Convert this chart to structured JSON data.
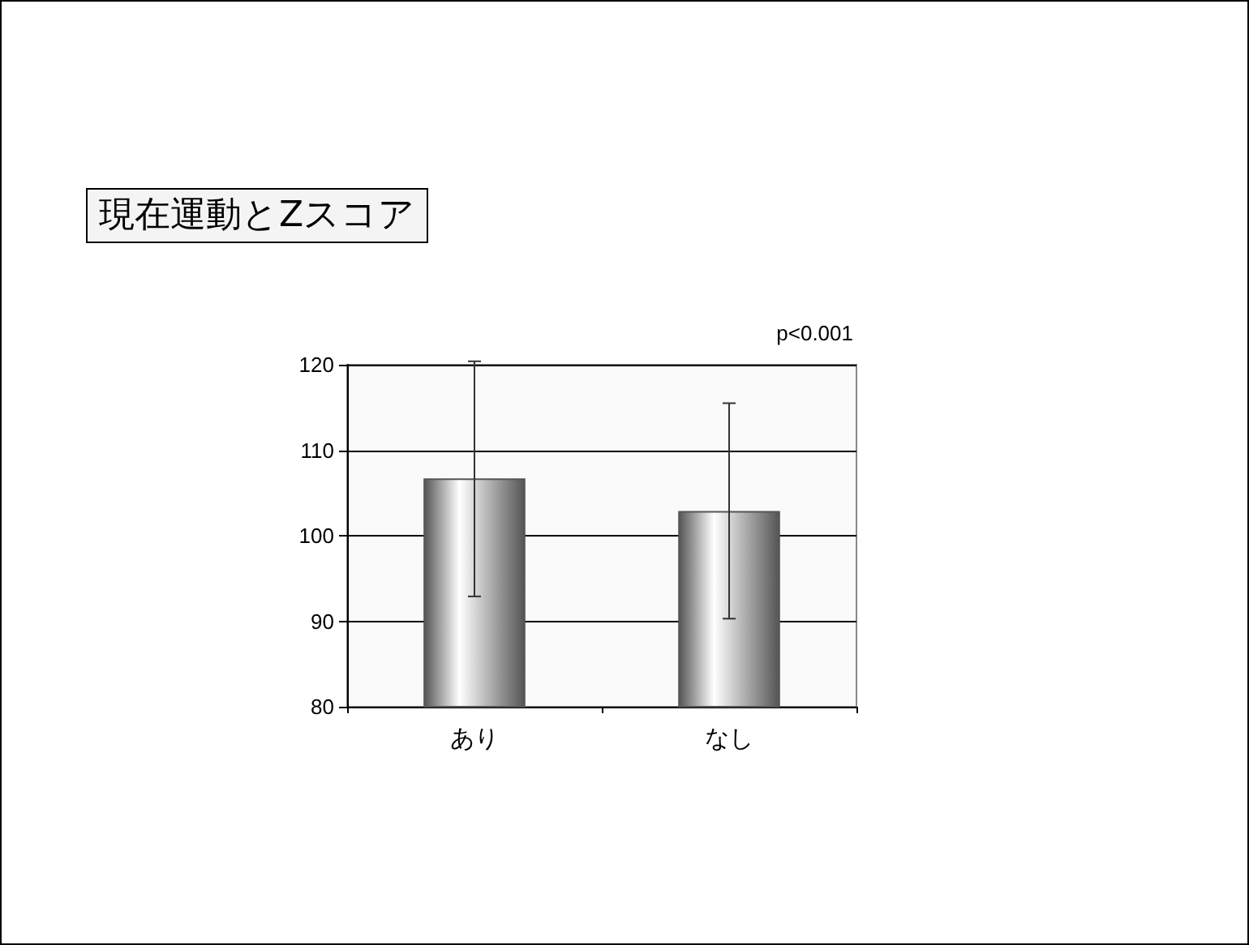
{
  "chart_data": {
    "type": "bar",
    "title": "現在運動とZスコア",
    "categories": [
      "あり",
      "なし"
    ],
    "values": [
      106.7,
      102.9
    ],
    "errors": [
      [
        92.9,
        120.4
      ],
      [
        90.3,
        115.5
      ]
    ],
    "color": "#555555",
    "ylim": [
      80,
      120
    ],
    "yticks": [
      80,
      90,
      100,
      110,
      120
    ],
    "grid": "y",
    "annotations": [
      "p<0.001"
    ]
  }
}
